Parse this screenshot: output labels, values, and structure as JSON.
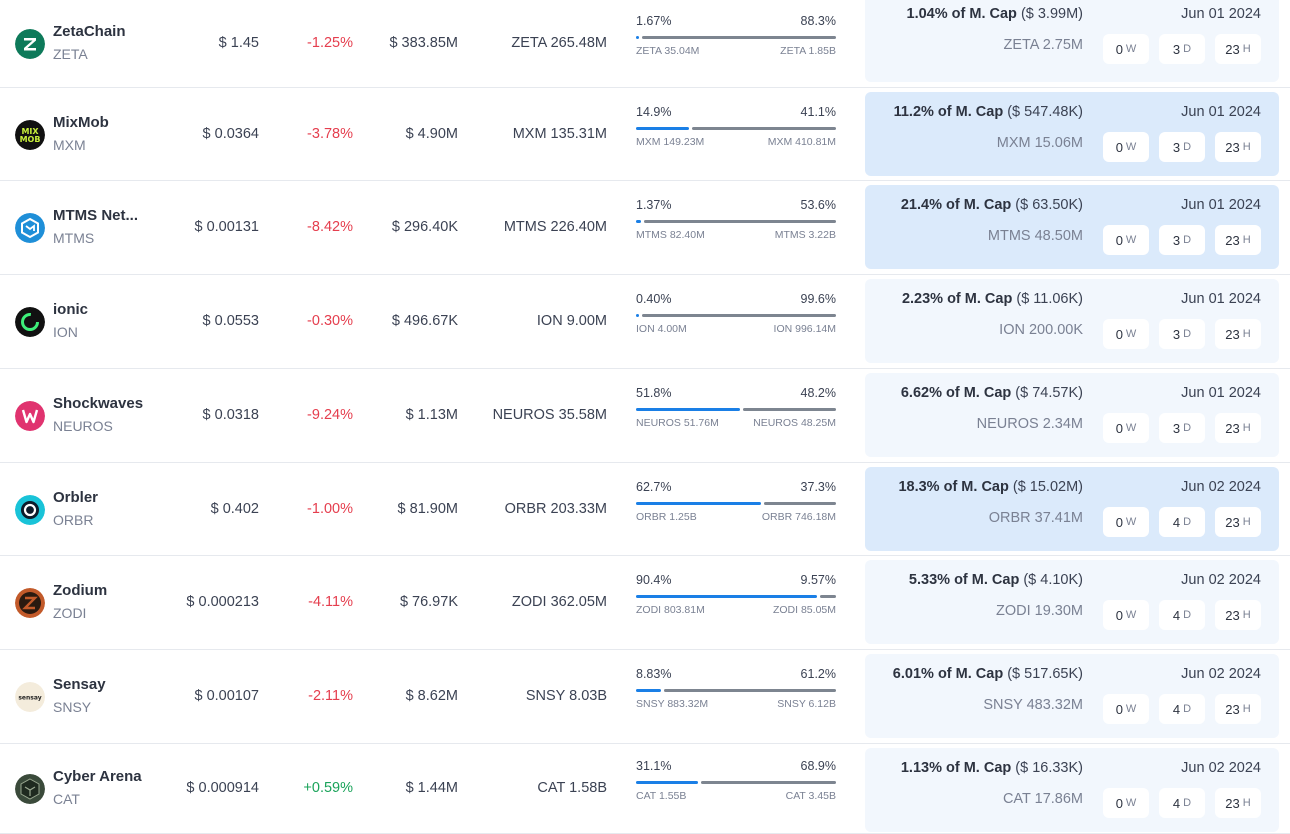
{
  "rows": [
    {
      "name": "ZetaChain",
      "symbol": "ZETA",
      "price": "$ 1.45",
      "change": "-1.25%",
      "change_dir": "neg",
      "market_cap": "$ 383.85M",
      "circulating": "ZETA 265.48M",
      "unlocked_pct": "1.67%",
      "locked_pct": "88.3%",
      "unlocked_fraction": 0.0167,
      "unlocked_amount": "ZETA 35.04M",
      "locked_amount": "ZETA 1.85B",
      "next_unlock_pct": "1.04% of M. Cap",
      "next_unlock_value": "($ 3.99M)",
      "next_unlock_tokens": "ZETA 2.75M",
      "unlock_date": "Jun 01 2024",
      "countdown": [
        {
          "value": "0",
          "unit": "W"
        },
        {
          "value": "3",
          "unit": "D"
        },
        {
          "value": "23",
          "unit": "H"
        }
      ],
      "card_style": "light",
      "icon": "zetachain-icon",
      "icon_color": "#0e7a5a"
    },
    {
      "name": "MixMob",
      "symbol": "MXM",
      "price": "$ 0.0364",
      "change": "-3.78%",
      "change_dir": "neg",
      "market_cap": "$ 4.90M",
      "circulating": "MXM 135.31M",
      "unlocked_pct": "14.9%",
      "locked_pct": "41.1%",
      "unlocked_fraction": 0.266,
      "unlocked_amount": "MXM 149.23M",
      "locked_amount": "MXM 410.81M",
      "next_unlock_pct": "11.2% of M. Cap",
      "next_unlock_value": "($ 547.48K)",
      "next_unlock_tokens": "MXM 15.06M",
      "unlock_date": "Jun 01 2024",
      "countdown": [
        {
          "value": "0",
          "unit": "W"
        },
        {
          "value": "3",
          "unit": "D"
        },
        {
          "value": "23",
          "unit": "H"
        }
      ],
      "card_style": "strong",
      "icon": "mixmob-icon",
      "icon_color": "#111111"
    },
    {
      "name": "MTMS Net...",
      "symbol": "MTMS",
      "price": "$ 0.00131",
      "change": "-8.42%",
      "change_dir": "neg",
      "market_cap": "$ 296.40K",
      "circulating": "MTMS 226.40M",
      "unlocked_pct": "1.37%",
      "locked_pct": "53.6%",
      "unlocked_fraction": 0.025,
      "unlocked_amount": "MTMS 82.40M",
      "locked_amount": "MTMS 3.22B",
      "next_unlock_pct": "21.4% of M. Cap",
      "next_unlock_value": "($ 63.50K)",
      "next_unlock_tokens": "MTMS 48.50M",
      "unlock_date": "Jun 01 2024",
      "countdown": [
        {
          "value": "0",
          "unit": "W"
        },
        {
          "value": "3",
          "unit": "D"
        },
        {
          "value": "23",
          "unit": "H"
        }
      ],
      "card_style": "strong",
      "icon": "mtms-icon",
      "icon_color": "#1f8fd8"
    },
    {
      "name": "ionic",
      "symbol": "ION",
      "price": "$ 0.0553",
      "change": "-0.30%",
      "change_dir": "neg",
      "market_cap": "$ 496.67K",
      "circulating": "ION 9.00M",
      "unlocked_pct": "0.40%",
      "locked_pct": "99.6%",
      "unlocked_fraction": 0.004,
      "unlocked_amount": "ION 4.00M",
      "locked_amount": "ION 996.14M",
      "next_unlock_pct": "2.23% of M. Cap",
      "next_unlock_value": "($ 11.06K)",
      "next_unlock_tokens": "ION 200.00K",
      "unlock_date": "Jun 01 2024",
      "countdown": [
        {
          "value": "0",
          "unit": "W"
        },
        {
          "value": "3",
          "unit": "D"
        },
        {
          "value": "23",
          "unit": "H"
        }
      ],
      "card_style": "light",
      "icon": "ionic-icon",
      "icon_color": "#111111"
    },
    {
      "name": "Shockwaves",
      "symbol": "NEUROS",
      "price": "$ 0.0318",
      "change": "-9.24%",
      "change_dir": "neg",
      "market_cap": "$ 1.13M",
      "circulating": "NEUROS 35.58M",
      "unlocked_pct": "51.8%",
      "locked_pct": "48.2%",
      "unlocked_fraction": 0.518,
      "unlocked_amount": "NEUROS 51.76M",
      "locked_amount": "NEUROS 48.25M",
      "next_unlock_pct": "6.62% of M. Cap",
      "next_unlock_value": "($ 74.57K)",
      "next_unlock_tokens": "NEUROS 2.34M",
      "unlock_date": "Jun 01 2024",
      "countdown": [
        {
          "value": "0",
          "unit": "W"
        },
        {
          "value": "3",
          "unit": "D"
        },
        {
          "value": "23",
          "unit": "H"
        }
      ],
      "card_style": "light",
      "icon": "shockwaves-icon",
      "icon_color": "#e0336f"
    },
    {
      "name": "Orbler",
      "symbol": "ORBR",
      "price": "$ 0.402",
      "change": "-1.00%",
      "change_dir": "neg",
      "market_cap": "$ 81.90M",
      "circulating": "ORBR 203.33M",
      "unlocked_pct": "62.7%",
      "locked_pct": "37.3%",
      "unlocked_fraction": 0.627,
      "unlocked_amount": "ORBR 1.25B",
      "locked_amount": "ORBR 746.18M",
      "next_unlock_pct": "18.3% of M. Cap",
      "next_unlock_value": "($ 15.02M)",
      "next_unlock_tokens": "ORBR 37.41M",
      "unlock_date": "Jun 02 2024",
      "countdown": [
        {
          "value": "0",
          "unit": "W"
        },
        {
          "value": "4",
          "unit": "D"
        },
        {
          "value": "23",
          "unit": "H"
        }
      ],
      "card_style": "strong",
      "icon": "orbler-icon",
      "icon_color": "#19c3d8"
    },
    {
      "name": "Zodium",
      "symbol": "ZODI",
      "price": "$ 0.000213",
      "change": "-4.11%",
      "change_dir": "neg",
      "market_cap": "$ 76.97K",
      "circulating": "ZODI 362.05M",
      "unlocked_pct": "90.4%",
      "locked_pct": "9.57%",
      "unlocked_fraction": 0.904,
      "unlocked_amount": "ZODI 803.81M",
      "locked_amount": "ZODI 85.05M",
      "next_unlock_pct": "5.33% of M. Cap",
      "next_unlock_value": "($ 4.10K)",
      "next_unlock_tokens": "ZODI 19.30M",
      "unlock_date": "Jun 02 2024",
      "countdown": [
        {
          "value": "0",
          "unit": "W"
        },
        {
          "value": "4",
          "unit": "D"
        },
        {
          "value": "23",
          "unit": "H"
        }
      ],
      "card_style": "light",
      "icon": "zodium-icon",
      "icon_color": "#c25a2a"
    },
    {
      "name": "Sensay",
      "symbol": "SNSY",
      "price": "$ 0.00107",
      "change": "-2.11%",
      "change_dir": "neg",
      "market_cap": "$ 8.62M",
      "circulating": "SNSY 8.03B",
      "unlocked_pct": "8.83%",
      "locked_pct": "61.2%",
      "unlocked_fraction": 0.126,
      "unlocked_amount": "SNSY 883.32M",
      "locked_amount": "SNSY 6.12B",
      "next_unlock_pct": "6.01% of M. Cap",
      "next_unlock_value": "($ 517.65K)",
      "next_unlock_tokens": "SNSY 483.32M",
      "unlock_date": "Jun 02 2024",
      "countdown": [
        {
          "value": "0",
          "unit": "W"
        },
        {
          "value": "4",
          "unit": "D"
        },
        {
          "value": "23",
          "unit": "H"
        }
      ],
      "card_style": "light",
      "icon": "sensay-icon",
      "icon_color": "#f4ecdc",
      "icon_text": "sensay"
    },
    {
      "name": "Cyber Arena",
      "symbol": "CAT",
      "price": "$ 0.000914",
      "change": "+0.59%",
      "change_dir": "pos",
      "market_cap": "$ 1.44M",
      "circulating": "CAT 1.58B",
      "unlocked_pct": "31.1%",
      "locked_pct": "68.9%",
      "unlocked_fraction": 0.311,
      "unlocked_amount": "CAT 1.55B",
      "locked_amount": "CAT 3.45B",
      "next_unlock_pct": "1.13% of M. Cap",
      "next_unlock_value": "($ 16.33K)",
      "next_unlock_tokens": "CAT 17.86M",
      "unlock_date": "Jun 02 2024",
      "countdown": [
        {
          "value": "0",
          "unit": "W"
        },
        {
          "value": "4",
          "unit": "D"
        },
        {
          "value": "23",
          "unit": "H"
        }
      ],
      "card_style": "light",
      "icon": "cyber-arena-icon",
      "icon_color": "#3a4a3a"
    }
  ]
}
